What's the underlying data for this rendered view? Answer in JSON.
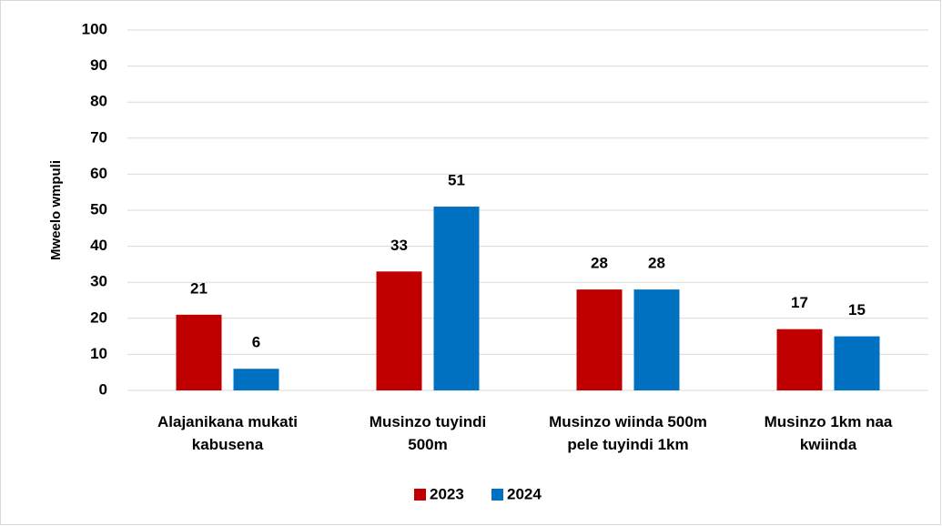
{
  "chart_data": {
    "type": "bar",
    "y_label": "Mweelo wmpuli",
    "categories": [
      [
        "Alajanikana mukati",
        "kabusena"
      ],
      [
        "Musinzo tuyindi",
        "500m"
      ],
      [
        "Musinzo wiinda 500m",
        "pele tuyindi 1km"
      ],
      [
        "Musinzo 1km naa",
        "kwiinda"
      ]
    ],
    "series": [
      {
        "name": "2023",
        "color": "#c00000",
        "values": [
          21,
          33,
          28,
          17
        ]
      },
      {
        "name": "2024",
        "color": "#0070c0",
        "values": [
          6,
          51,
          28,
          15
        ]
      }
    ],
    "ylim": [
      0,
      100
    ],
    "yticks": [
      0,
      10,
      20,
      30,
      40,
      50,
      60,
      70,
      80,
      90,
      100
    ],
    "grid": true,
    "legend": "bottom"
  }
}
